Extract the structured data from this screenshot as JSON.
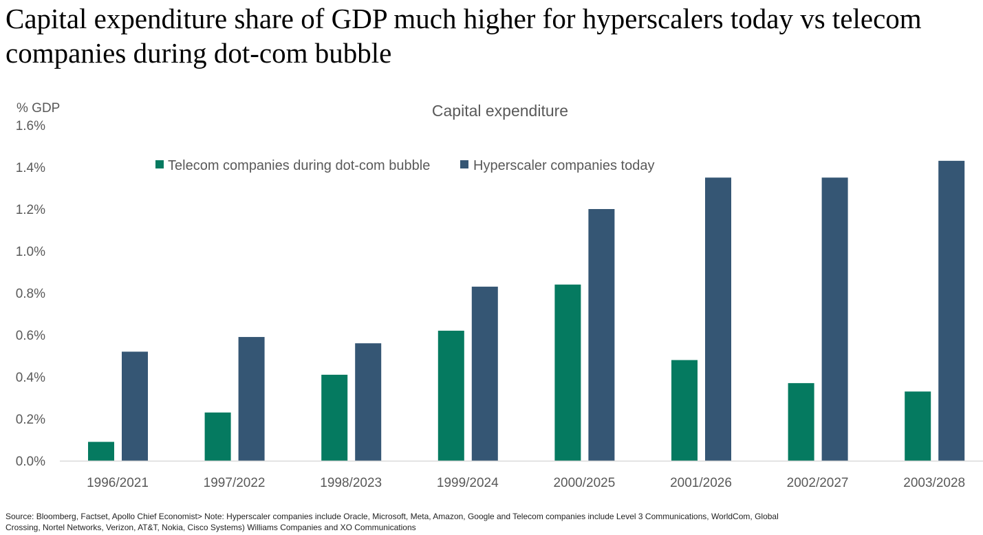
{
  "title": "Capital expenditure share of GDP much higher for hyperscalers today vs telecom companies during dot-com bubble",
  "source": "Source: Bloomberg, Factset, Apollo Chief Economist> Note: Hyperscaler companies include Oracle, Microsoft, Meta, Amazon, Google and Telecom companies include  Level 3 Communications, WorldCom, Global Crossing, Nortel Networks, Verizon, AT&T, Nokia, Cisco Systems) Williams Companies and XO Communications",
  "chart_data": {
    "type": "bar",
    "title": "Capital expenditure",
    "ylabel": "% GDP",
    "xlabel": "",
    "ylim": [
      0,
      1.6
    ],
    "yticks": [
      "0.0%",
      "0.2%",
      "0.4%",
      "0.6%",
      "0.8%",
      "1.0%",
      "1.2%",
      "1.4%",
      "1.6%"
    ],
    "legend_position": "top",
    "grid": false,
    "categories": [
      "1996/2021",
      "1997/2022",
      "1998/2023",
      "1999/2024",
      "2000/2025",
      "2001/2026",
      "2002/2027",
      "2003/2028"
    ],
    "series": [
      {
        "name": "Telecom companies during dot-com bubble",
        "color": "#057A60",
        "values": [
          0.09,
          0.23,
          0.41,
          0.62,
          0.84,
          0.48,
          0.37,
          0.33
        ]
      },
      {
        "name": "Hyperscaler companies today",
        "color": "#355674",
        "values": [
          0.52,
          0.59,
          0.56,
          0.83,
          1.2,
          1.35,
          1.35,
          1.43
        ]
      }
    ]
  }
}
